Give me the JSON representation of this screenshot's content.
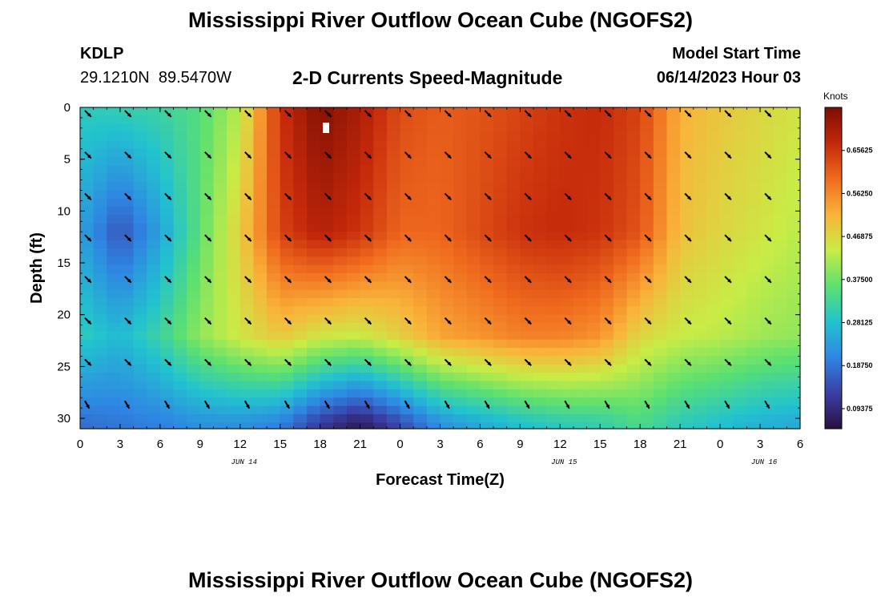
{
  "page": {
    "title": "Mississippi River Outflow Ocean Cube (NGOFS2)",
    "station_id": "KDLP",
    "station_coords": "29.1210N  89.5470W",
    "subtitle": "2-D Currents Speed-Magnitude",
    "model_start_label": "Model Start Time",
    "model_start_value": "06/14/2023 Hour 03",
    "repeated_title": "Mississippi River Outflow Ocean Cube (NGOFS2)"
  },
  "chart_data": {
    "type": "heatmap",
    "title": "2-D Currents Speed-Magnitude",
    "xlabel": "Forecast Time(Z)",
    "ylabel": "Depth (ft)",
    "x_ticks": [
      "0",
      "3",
      "6",
      "9",
      "12",
      "15",
      "18",
      "21",
      "0",
      "3",
      "6",
      "9",
      "12",
      "15",
      "18",
      "21",
      "0",
      "3",
      "6"
    ],
    "x_hours": [
      0,
      3,
      6,
      9,
      12,
      15,
      18,
      21,
      24,
      27,
      30,
      33,
      36,
      39,
      42,
      45,
      48,
      51,
      54
    ],
    "x_range": [
      0,
      54
    ],
    "date_labels": [
      {
        "text": "JUN 14",
        "hour": 12
      },
      {
        "text": "JUN 15",
        "hour": 36
      },
      {
        "text": "JUN 16",
        "hour": 51
      }
    ],
    "y_ticks": [
      "0",
      "5",
      "10",
      "15",
      "20",
      "25",
      "30"
    ],
    "y_tick_values": [
      0,
      5,
      10,
      15,
      20,
      25,
      30
    ],
    "y_range": [
      0,
      31
    ],
    "y_inverted": true,
    "colorbar": {
      "title": "Knots",
      "range": [
        0.05,
        0.75
      ],
      "tick_labels": [
        "0.65625",
        "0.56250",
        "0.46875",
        "0.37500",
        "0.28125",
        "0.18750",
        "0.09375"
      ],
      "tick_values": [
        0.65625,
        0.5625,
        0.46875,
        0.375,
        0.28125,
        0.1875,
        0.09375
      ],
      "colors": [
        "#2a1040",
        "#3a3fa6",
        "#2f86e3",
        "#22c3cf",
        "#5ce070",
        "#c8ec45",
        "#f9b33a",
        "#f06a1e",
        "#c4280a",
        "#7a0e04"
      ]
    },
    "grid": {
      "depths": [
        0,
        0.8,
        1.6,
        2.4,
        3.2,
        4.0,
        4.8,
        5.6,
        6.4,
        7.2,
        8.0,
        8.8,
        9.6,
        10.4,
        11.2,
        12.0,
        12.8,
        13.6,
        14.4,
        15.2,
        16.0,
        16.8,
        17.6,
        18.4,
        19.2,
        20.0,
        20.8,
        21.6,
        22.4,
        23.2,
        24.0,
        24.8,
        25.6,
        26.4,
        27.2,
        28.0,
        28.8,
        29.6,
        30.4
      ],
      "hours": [
        0,
        3,
        6,
        9,
        12,
        15,
        18,
        21,
        24,
        27,
        30,
        33,
        36,
        39,
        42,
        45,
        48,
        51,
        54
      ],
      "depth_profile_hours": [
        0,
        3,
        6,
        9,
        12,
        15,
        18,
        21,
        24,
        27,
        30,
        33,
        36,
        39,
        42,
        45,
        48,
        51,
        54
      ],
      "surface_speed": [
        0.3,
        0.31,
        0.32,
        0.35,
        0.43,
        0.66,
        0.74,
        0.7,
        0.63,
        0.61,
        0.62,
        0.64,
        0.66,
        0.67,
        0.64,
        0.52,
        0.49,
        0.47,
        0.45
      ],
      "mid_speed": [
        0.24,
        0.15,
        0.24,
        0.36,
        0.48,
        0.64,
        0.69,
        0.66,
        0.6,
        0.6,
        0.63,
        0.66,
        0.67,
        0.66,
        0.62,
        0.5,
        0.47,
        0.45,
        0.43
      ],
      "lower_speed": [
        0.3,
        0.27,
        0.32,
        0.4,
        0.45,
        0.49,
        0.45,
        0.44,
        0.48,
        0.53,
        0.55,
        0.57,
        0.57,
        0.55,
        0.47,
        0.44,
        0.43,
        0.41,
        0.4
      ],
      "bottom_speed": [
        0.18,
        0.19,
        0.2,
        0.22,
        0.22,
        0.2,
        0.12,
        0.07,
        0.14,
        0.22,
        0.25,
        0.28,
        0.3,
        0.31,
        0.34,
        0.3,
        0.28,
        0.26,
        0.25
      ]
    },
    "vectors": {
      "hours": [
        0,
        3,
        6,
        9,
        12,
        15,
        18,
        21,
        24,
        27,
        30,
        33,
        36,
        39,
        42,
        45,
        48,
        51
      ],
      "depths": [
        0,
        4,
        8,
        12,
        16,
        20,
        24,
        28
      ],
      "direction_deg": 135,
      "bottom_row_direction_deg": 150
    }
  }
}
